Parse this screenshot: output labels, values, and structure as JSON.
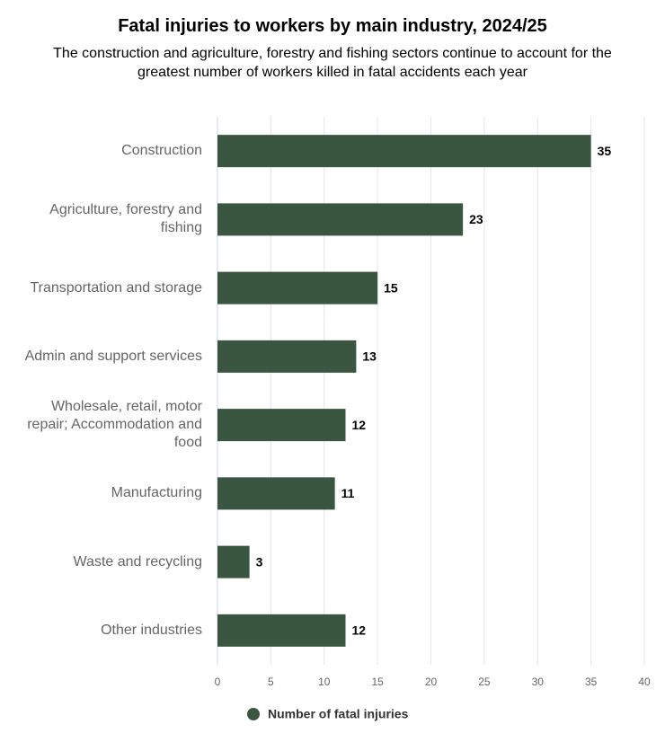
{
  "chart_data": {
    "type": "bar",
    "orientation": "horizontal",
    "title": "Fatal injuries to workers by main industry, 2024/25",
    "subtitle": "The construction and agriculture, forestry and fishing sectors continue to account for the greatest number of workers killed in fatal accidents each year",
    "categories": [
      "Construction",
      "Agriculture, forestry and fishing",
      "Transportation and storage",
      "Admin and support services",
      "Wholesale, retail, motor repair; Accommodation and food",
      "Manufacturing",
      "Waste and recycling",
      "Other industries"
    ],
    "series": [
      {
        "name": "Number of fatal injuries",
        "color": "#3b5640",
        "values": [
          35,
          23,
          15,
          13,
          12,
          11,
          3,
          12
        ]
      }
    ],
    "xlim": [
      0,
      40
    ],
    "xticks": [
      0,
      5,
      10,
      15,
      20,
      25,
      30,
      35,
      40
    ],
    "grid": true,
    "legend": "bottom"
  }
}
